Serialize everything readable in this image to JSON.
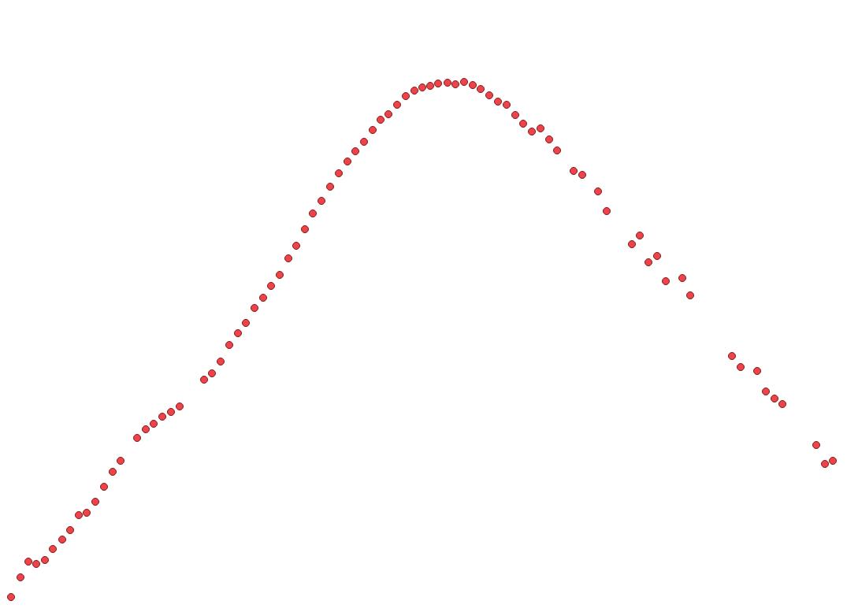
{
  "chart_data": {
    "type": "scatter",
    "x": [
      14,
      26,
      36,
      46,
      57,
      67,
      79,
      89,
      100,
      110,
      121,
      132,
      143,
      153,
      174,
      185,
      195,
      206,
      217,
      228,
      259,
      269,
      280,
      291,
      302,
      312,
      323,
      334,
      344,
      355,
      366,
      376,
      387,
      397,
      408,
      419,
      430,
      441,
      451,
      462,
      473,
      483,
      493,
      504,
      515,
      526,
      536,
      546,
      556,
      568,
      578,
      589,
      600,
      610,
      621,
      632,
      643,
      654,
      664,
      675,
      686,
      697,
      707,
      728,
      739,
      759,
      770,
      802,
      812,
      823,
      834,
      845,
      866,
      876,
      929,
      940,
      961,
      972,
      983,
      993,
      1036,
      1047,
      1057
    ],
    "values": [
      19,
      44,
      64,
      61,
      66,
      80,
      92,
      104,
      123,
      126,
      140,
      159,
      178,
      192,
      221,
      232,
      239,
      248,
      254,
      261,
      295,
      303,
      318,
      339,
      354,
      367,
      386,
      399,
      414,
      428,
      449,
      465,
      486,
      506,
      522,
      540,
      557,
      572,
      585,
      597,
      612,
      625,
      632,
      644,
      655,
      662,
      666,
      668,
      671,
      672,
      670,
      673,
      669,
      664,
      656,
      648,
      644,
      631,
      620,
      610,
      614,
      600,
      586,
      560,
      555,
      534,
      509,
      467,
      478,
      444,
      452,
      420,
      424,
      402,
      325,
      311,
      306,
      280,
      271,
      264,
      212,
      188,
      192
    ],
    "xlim": [
      0,
      1075
    ],
    "ylim": [
      0,
      777
    ],
    "color": "#e8141c",
    "marker": "circle",
    "grid": false,
    "tick_labels": false
  }
}
